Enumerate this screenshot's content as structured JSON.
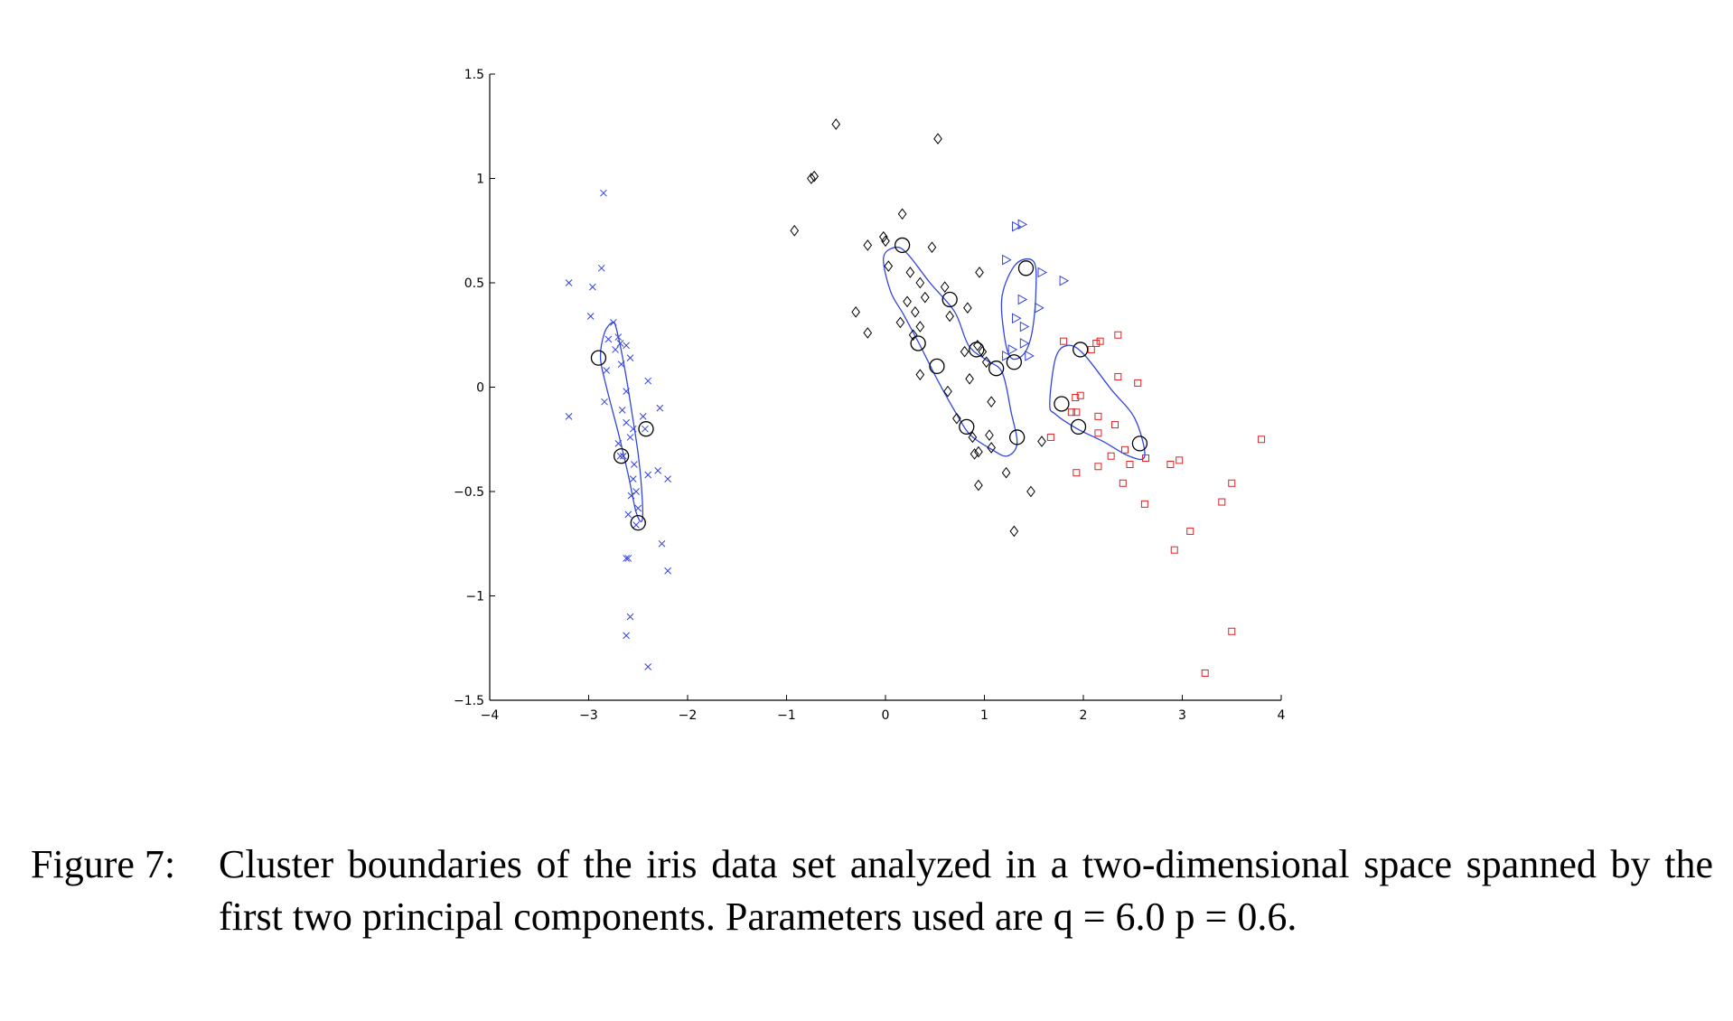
{
  "caption": {
    "label": "Figure 7:",
    "text": "Cluster boundaries of the iris data set analyzed in a two-dimensional space spanned by the first two principal components. Parameters used are q = 6.0 p = 0.6."
  },
  "colors": {
    "setosa": "#3344dd",
    "versicolor": "#000000",
    "virginica": "#dd2222",
    "boundary": "#3344dd",
    "axis": "#000000"
  },
  "chart_data": {
    "type": "scatter",
    "title": "",
    "xlabel": "",
    "ylabel": "",
    "xlim": [
      -4,
      4
    ],
    "ylim": [
      -1.5,
      1.5
    ],
    "xticks": [
      -4,
      -3,
      -2,
      -1,
      0,
      1,
      2,
      3,
      4
    ],
    "yticks": [
      -1.5,
      -1,
      -0.5,
      0,
      0.5,
      1,
      1.5
    ],
    "xtick_labels": [
      "−4",
      "−3",
      "−2",
      "−1",
      "0",
      "1",
      "2",
      "3",
      "4"
    ],
    "ytick_labels": [
      "−1.5",
      "−1",
      "−0.5",
      "0",
      "0.5",
      "1",
      "1.5"
    ],
    "grid": false,
    "series": [
      {
        "marker": "x",
        "color": "#3344dd",
        "points": [
          [
            -3.2,
            0.5
          ],
          [
            -2.85,
            0.93
          ],
          [
            -2.87,
            0.57
          ],
          [
            -2.96,
            0.48
          ],
          [
            -2.98,
            0.34
          ],
          [
            -3.2,
            -0.14
          ],
          [
            -2.75,
            0.31
          ],
          [
            -2.7,
            0.24
          ],
          [
            -2.8,
            0.23
          ],
          [
            -2.62,
            0.2
          ],
          [
            -2.68,
            0.21
          ],
          [
            -2.73,
            0.18
          ],
          [
            -2.58,
            0.14
          ],
          [
            -2.67,
            0.11
          ],
          [
            -2.82,
            0.08
          ],
          [
            -2.4,
            0.03
          ],
          [
            -2.62,
            -0.02
          ],
          [
            -2.84,
            -0.07
          ],
          [
            -2.66,
            -0.11
          ],
          [
            -2.28,
            -0.1
          ],
          [
            -2.45,
            -0.14
          ],
          [
            -2.62,
            -0.17
          ],
          [
            -2.55,
            -0.2
          ],
          [
            -2.43,
            -0.2
          ],
          [
            -2.58,
            -0.24
          ],
          [
            -2.7,
            -0.27
          ],
          [
            -2.68,
            -0.33
          ],
          [
            -2.65,
            -0.33
          ],
          [
            -2.54,
            -0.37
          ],
          [
            -2.3,
            -0.4
          ],
          [
            -2.4,
            -0.42
          ],
          [
            -2.2,
            -0.44
          ],
          [
            -2.55,
            -0.44
          ],
          [
            -2.52,
            -0.5
          ],
          [
            -2.57,
            -0.52
          ],
          [
            -2.5,
            -0.58
          ],
          [
            -2.6,
            -0.61
          ],
          [
            -2.52,
            -0.66
          ],
          [
            -2.26,
            -0.75
          ],
          [
            -2.62,
            -0.82
          ],
          [
            -2.6,
            -0.82
          ],
          [
            -2.2,
            -0.88
          ],
          [
            -2.58,
            -1.1
          ],
          [
            -2.62,
            -1.19
          ],
          [
            -2.4,
            -1.34
          ]
        ]
      },
      {
        "marker": "diamond",
        "color": "#000000",
        "points": [
          [
            -0.5,
            1.26
          ],
          [
            0.53,
            1.19
          ],
          [
            -0.75,
            1.0
          ],
          [
            -0.72,
            1.01
          ],
          [
            -0.92,
            0.75
          ],
          [
            0.17,
            0.83
          ],
          [
            -0.02,
            0.72
          ],
          [
            0.0,
            0.7
          ],
          [
            -0.18,
            0.68
          ],
          [
            0.47,
            0.67
          ],
          [
            0.03,
            0.58
          ],
          [
            0.25,
            0.55
          ],
          [
            0.35,
            0.5
          ],
          [
            0.95,
            0.55
          ],
          [
            0.6,
            0.48
          ],
          [
            0.4,
            0.43
          ],
          [
            0.22,
            0.41
          ],
          [
            0.3,
            0.36
          ],
          [
            0.15,
            0.31
          ],
          [
            0.35,
            0.29
          ],
          [
            0.65,
            0.34
          ],
          [
            0.28,
            0.25
          ],
          [
            -0.3,
            0.36
          ],
          [
            -0.18,
            0.26
          ],
          [
            0.83,
            0.38
          ],
          [
            0.93,
            0.2
          ],
          [
            0.98,
            0.17
          ],
          [
            0.8,
            0.17
          ],
          [
            1.02,
            0.12
          ],
          [
            0.85,
            0.04
          ],
          [
            0.35,
            0.06
          ],
          [
            0.63,
            -0.02
          ],
          [
            1.07,
            -0.07
          ],
          [
            0.72,
            -0.15
          ],
          [
            0.88,
            -0.24
          ],
          [
            1.05,
            -0.23
          ],
          [
            1.07,
            -0.29
          ],
          [
            0.9,
            -0.32
          ],
          [
            0.94,
            -0.31
          ],
          [
            0.94,
            -0.47
          ],
          [
            1.22,
            -0.41
          ],
          [
            1.47,
            -0.5
          ],
          [
            1.3,
            -0.69
          ],
          [
            1.58,
            -0.26
          ]
        ]
      },
      {
        "marker": "triangle-right",
        "color": "#3344dd",
        "points": [
          [
            1.32,
            0.77
          ],
          [
            1.38,
            0.78
          ],
          [
            1.22,
            0.61
          ],
          [
            1.58,
            0.55
          ],
          [
            1.8,
            0.51
          ],
          [
            1.55,
            0.38
          ],
          [
            1.38,
            0.42
          ],
          [
            1.32,
            0.33
          ],
          [
            1.4,
            0.29
          ],
          [
            1.4,
            0.21
          ],
          [
            1.28,
            0.18
          ],
          [
            1.22,
            0.15
          ],
          [
            1.45,
            0.15
          ]
        ]
      },
      {
        "marker": "square",
        "color": "#dd2222",
        "points": [
          [
            2.35,
            0.25
          ],
          [
            2.17,
            0.22
          ],
          [
            2.13,
            0.21
          ],
          [
            1.8,
            0.22
          ],
          [
            2.08,
            0.18
          ],
          [
            2.35,
            0.05
          ],
          [
            2.55,
            0.02
          ],
          [
            1.97,
            -0.04
          ],
          [
            1.92,
            -0.05
          ],
          [
            1.88,
            -0.12
          ],
          [
            1.93,
            -0.12
          ],
          [
            2.15,
            -0.14
          ],
          [
            2.32,
            -0.18
          ],
          [
            2.15,
            -0.22
          ],
          [
            1.67,
            -0.24
          ],
          [
            2.42,
            -0.3
          ],
          [
            2.28,
            -0.33
          ],
          [
            2.63,
            -0.34
          ],
          [
            2.47,
            -0.37
          ],
          [
            2.15,
            -0.38
          ],
          [
            2.97,
            -0.35
          ],
          [
            2.88,
            -0.37
          ],
          [
            1.93,
            -0.41
          ],
          [
            2.4,
            -0.46
          ],
          [
            3.5,
            -0.46
          ],
          [
            3.4,
            -0.55
          ],
          [
            2.62,
            -0.56
          ],
          [
            3.8,
            -0.25
          ],
          [
            3.08,
            -0.69
          ],
          [
            2.92,
            -0.78
          ],
          [
            3.5,
            -1.17
          ],
          [
            3.23,
            -1.37
          ]
        ]
      }
    ],
    "support_vectors": [
      [
        -2.9,
        0.14
      ],
      [
        -2.42,
        -0.2
      ],
      [
        -2.67,
        -0.33
      ],
      [
        -2.5,
        -0.65
      ],
      [
        0.17,
        0.68
      ],
      [
        0.65,
        0.42
      ],
      [
        0.92,
        0.18
      ],
      [
        0.33,
        0.21
      ],
      [
        0.52,
        0.1
      ],
      [
        1.12,
        0.09
      ],
      [
        0.82,
        -0.19
      ],
      [
        1.33,
        -0.24
      ],
      [
        1.3,
        0.12
      ],
      [
        1.42,
        0.57
      ],
      [
        1.97,
        0.18
      ],
      [
        1.78,
        -0.08
      ],
      [
        1.95,
        -0.19
      ],
      [
        2.57,
        -0.27
      ]
    ],
    "cluster_boundaries": [
      [
        [
          -2.84,
          0.26
        ],
        [
          -2.76,
          0.31
        ],
        [
          -2.72,
          0.28
        ],
        [
          -2.64,
          0.1
        ],
        [
          -2.57,
          -0.1
        ],
        [
          -2.5,
          -0.32
        ],
        [
          -2.46,
          -0.52
        ],
        [
          -2.46,
          -0.64
        ],
        [
          -2.52,
          -0.6
        ],
        [
          -2.6,
          -0.42
        ],
        [
          -2.7,
          -0.22
        ],
        [
          -2.82,
          0.0
        ],
        [
          -2.88,
          0.14
        ]
      ],
      [
        [
          -0.02,
          0.62
        ],
        [
          0.1,
          0.67
        ],
        [
          0.22,
          0.64
        ],
        [
          0.45,
          0.5
        ],
        [
          0.7,
          0.36
        ],
        [
          0.84,
          0.2
        ],
        [
          1.02,
          0.13
        ],
        [
          1.18,
          0.07
        ],
        [
          1.27,
          -0.12
        ],
        [
          1.33,
          -0.27
        ],
        [
          1.23,
          -0.33
        ],
        [
          1.08,
          -0.3
        ],
        [
          0.86,
          -0.23
        ],
        [
          0.72,
          -0.13
        ],
        [
          0.52,
          0.04
        ],
        [
          0.35,
          0.2
        ],
        [
          0.18,
          0.35
        ],
        [
          0.05,
          0.46
        ]
      ],
      [
        [
          1.18,
          0.44
        ],
        [
          1.32,
          0.59
        ],
        [
          1.5,
          0.6
        ],
        [
          1.52,
          0.45
        ],
        [
          1.48,
          0.26
        ],
        [
          1.4,
          0.16
        ],
        [
          1.27,
          0.14
        ],
        [
          1.2,
          0.25
        ]
      ],
      [
        [
          1.66,
          -0.08
        ],
        [
          1.72,
          0.14
        ],
        [
          1.84,
          0.2
        ],
        [
          2.0,
          0.16
        ],
        [
          2.28,
          -0.01
        ],
        [
          2.52,
          -0.15
        ],
        [
          2.62,
          -0.33
        ],
        [
          2.46,
          -0.33
        ],
        [
          2.2,
          -0.26
        ],
        [
          1.94,
          -0.2
        ],
        [
          1.72,
          -0.13
        ]
      ]
    ]
  }
}
